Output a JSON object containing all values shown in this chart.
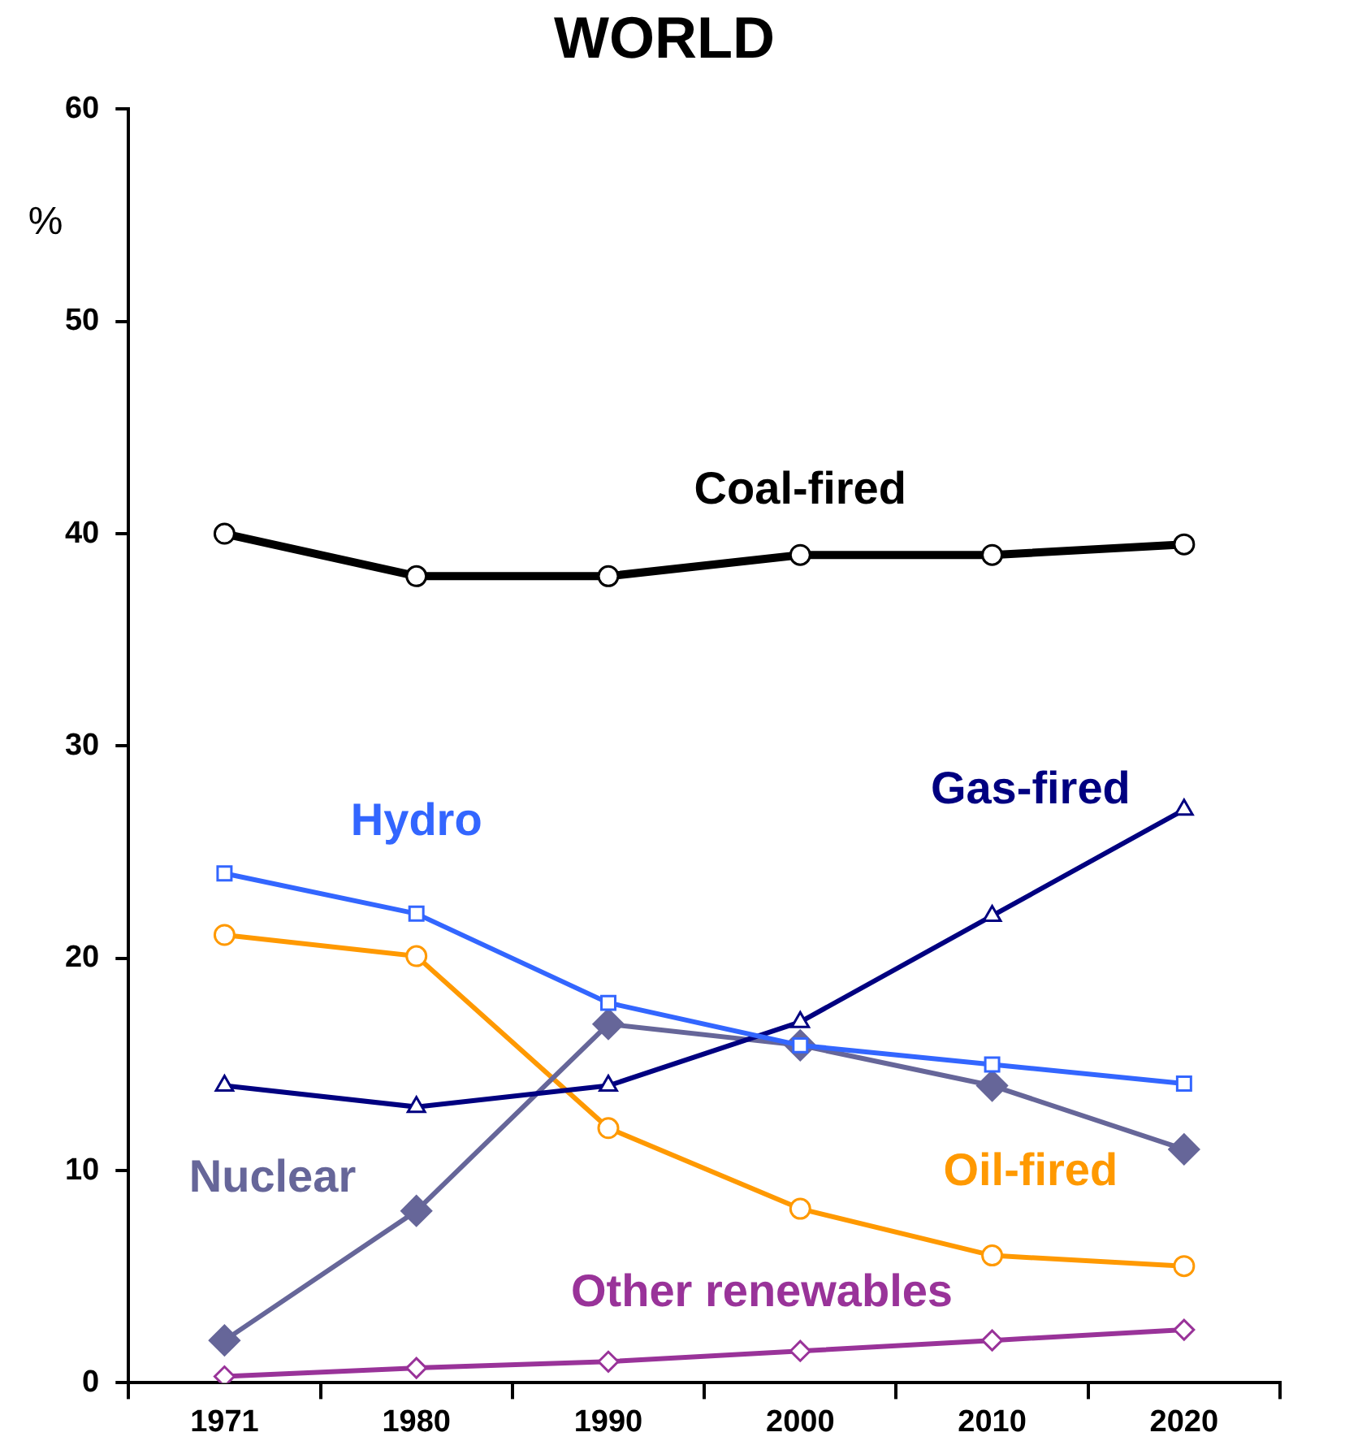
{
  "chart_data": {
    "type": "line",
    "title": "WORLD",
    "ylabel": "%",
    "categories": [
      "1971",
      "1980",
      "1990",
      "2000",
      "2010",
      "2020"
    ],
    "series": [
      {
        "name": "Coal-fired",
        "color": "#000000",
        "marker": "circle",
        "values": [
          40,
          38,
          38,
          39,
          39,
          39.5
        ]
      },
      {
        "name": "Hydro",
        "color": "#3366ff",
        "marker": "square",
        "values": [
          24,
          22.1,
          17.9,
          15.9,
          15,
          14.1
        ]
      },
      {
        "name": "Gas-fired",
        "color": "#000080",
        "marker": "triangle",
        "values": [
          14,
          13,
          14,
          17,
          22,
          27
        ]
      },
      {
        "name": "Nuclear",
        "color": "#666699",
        "marker": "diamond",
        "values": [
          2,
          8.1,
          16.9,
          15.9,
          14,
          11
        ]
      },
      {
        "name": "Oil-fired",
        "color": "#ff9900",
        "marker": "circle",
        "values": [
          21.1,
          20.1,
          12,
          8.2,
          6,
          5.5
        ]
      },
      {
        "name": "Other renewables",
        "color": "#993399",
        "marker": "diamond",
        "values": [
          0.3,
          0.7,
          1,
          1.5,
          2,
          2.5
        ]
      }
    ],
    "ylim": [
      0,
      60
    ],
    "yticks": [
      0,
      10,
      20,
      30,
      40,
      50,
      60
    ],
    "grid": false,
    "legend": false
  }
}
